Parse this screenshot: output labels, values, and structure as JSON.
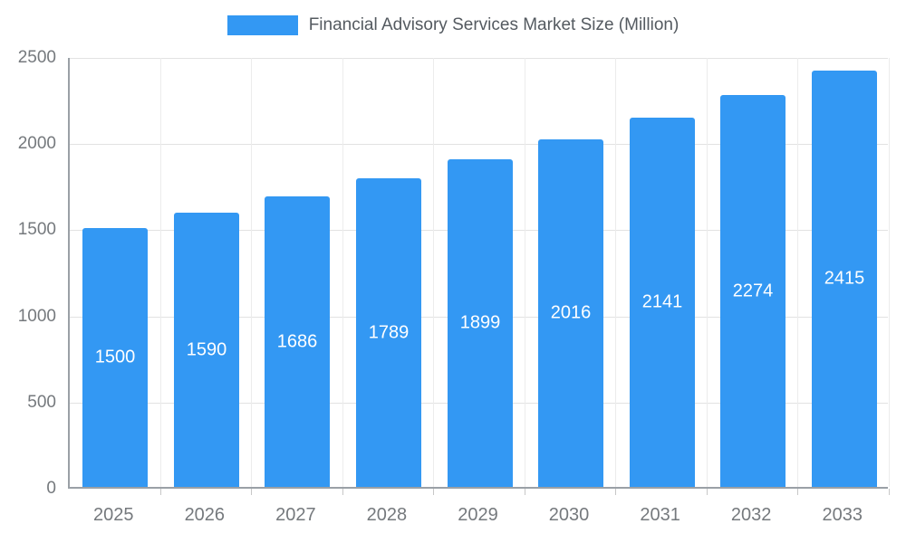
{
  "chart_data": {
    "type": "bar",
    "title": "Financial Advisory Services Market Size (Million)",
    "categories": [
      "2025",
      "2026",
      "2027",
      "2028",
      "2029",
      "2030",
      "2031",
      "2032",
      "2033"
    ],
    "values": [
      1500,
      1590,
      1686,
      1789,
      1899,
      2016,
      2141,
      2274,
      2415
    ],
    "xlabel": "",
    "ylabel": "",
    "ylim": [
      0,
      2500
    ],
    "yticks": [
      0,
      500,
      1000,
      1500,
      2000,
      2500
    ],
    "grid": true,
    "legend_position": "top",
    "bar_color": "#3398F3",
    "value_label_color": "#FFFFFF",
    "axis_text_color": "#75797D"
  }
}
